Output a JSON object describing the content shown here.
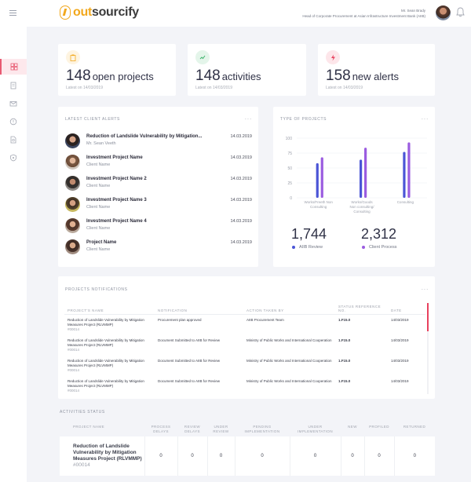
{
  "header": {
    "logo_a": "out",
    "logo_b": "sourcify",
    "user_name": "Mr. Sean Brady",
    "user_role": "Head of Corporate Procurement at Asian Infrastructure Investment Bank (AIIB)"
  },
  "stats": [
    {
      "value": "148",
      "label": "open projects",
      "sub": "Latest on 14/03/2019",
      "icon": "clipboard-icon",
      "color": "#f2a81d",
      "bg": "#fef4e1"
    },
    {
      "value": "148",
      "label": "activities",
      "sub": "Latest on 14/03/2019",
      "icon": "activity-icon",
      "color": "#3bb36b",
      "bg": "#e4f5ea"
    },
    {
      "value": "158",
      "label": "new alerts",
      "sub": "Latest on 14/03/2019",
      "icon": "lightning-icon",
      "color": "#e8415e",
      "bg": "#fde6ea"
    }
  ],
  "alerts": {
    "title": "Latest Client Alerts",
    "dots": "···",
    "items": [
      {
        "name": "Reduction of Landslide Vulnerability by Mitigation...",
        "sub": "Mr. Sean Veeth",
        "date": "14.03.2019"
      },
      {
        "name": "Investment Project Name",
        "sub": "Client Name",
        "date": "14.03.2019"
      },
      {
        "name": "Investment Project Name 2",
        "sub": "Client Name",
        "date": "14.03.2019"
      },
      {
        "name": "Investment Project Name 3",
        "sub": "Client Name",
        "date": "14.03.2019"
      },
      {
        "name": "Investment Project Name 4",
        "sub": "Client Name",
        "date": "14.03.2019"
      },
      {
        "name": "Project Name",
        "sub": "Client Name",
        "date": "14.03.2019"
      }
    ]
  },
  "chart_data": {
    "type": "bar",
    "title": "Type of Projects",
    "categories": [
      "Works/Freeth Non Consulting",
      "Works/Goods Non consulting/ Consulting",
      "Consulting"
    ],
    "category_lines": [
      [
        "Works/Freeth Non",
        "Consulting"
      ],
      [
        "Works/Goods",
        "Non consulting/",
        "Consulting"
      ],
      [
        "Consulting"
      ]
    ],
    "series": [
      {
        "name": "AIIB Review",
        "values": [
          58,
          64,
          77
        ],
        "color": "#4b55d6"
      },
      {
        "name": "Client Process",
        "values": [
          68,
          84,
          93
        ],
        "color": "#9b5ce0"
      }
    ],
    "yticks": [
      0,
      25,
      50,
      75,
      100
    ],
    "ylim": [
      0,
      100
    ],
    "legend": [
      {
        "value": "1,744",
        "label": "AIIB Review",
        "color": "#4b55d6"
      },
      {
        "value": "2,312",
        "label": "Client Process",
        "color": "#9b5ce0"
      }
    ]
  },
  "notifications": {
    "title": "Projects Notifications",
    "dots": "···",
    "columns": [
      "Project's Name",
      "Notification",
      "Action Taken By",
      "Status Reference No.",
      "Date"
    ],
    "rows": [
      {
        "name": "Reduction of Landslide Vulnerability by Mitigation Measures Project (RLVMMP)",
        "id": "#00014",
        "notification": "Procurement plan approved",
        "action": "AIIB Procurement Team",
        "ref": "1.F15.0",
        "date": "14/03/2019"
      },
      {
        "name": "Reduction of Landslide Vulnerability by Mitigation Measures Project (RLVMMP)",
        "id": "#00014",
        "notification": "Document Submitted to AIIB for Review",
        "action": "Ministry of Public Works and International Cooperation",
        "ref": "1.F15.0",
        "date": "14/03/2019"
      },
      {
        "name": "Reduction of Landslide Vulnerability by Mitigation Measures Project (RLVMMP)",
        "id": "#00014",
        "notification": "Document Submitted to AIIB for Review",
        "action": "Ministry of Public Works and International Cooperation",
        "ref": "1.F15.0",
        "date": "14/03/2019"
      },
      {
        "name": "Reduction of Landslide Vulnerability by Mitigation Measures Project (RLVMMP)",
        "id": "#00014",
        "notification": "Document Submitted to AIIB for Review",
        "action": "Ministry of Public Works and International Cooperation",
        "ref": "1.F15.0",
        "date": "14/03/2019"
      }
    ]
  },
  "activities": {
    "title": "Activities Status",
    "columns": [
      "Project Name",
      "Process Delays",
      "Review Delays",
      "Under Review",
      "Pending Implementation",
      "Under Implementation",
      "New",
      "Profiled",
      "Returned"
    ],
    "row": {
      "name": "Reduction of Landslide Vulnerability by Mitigation Measures Project (RLVMMP)",
      "id": "#00014",
      "values": [
        "0",
        "0",
        "0",
        "0",
        "0",
        "0",
        "0",
        "0"
      ]
    }
  }
}
